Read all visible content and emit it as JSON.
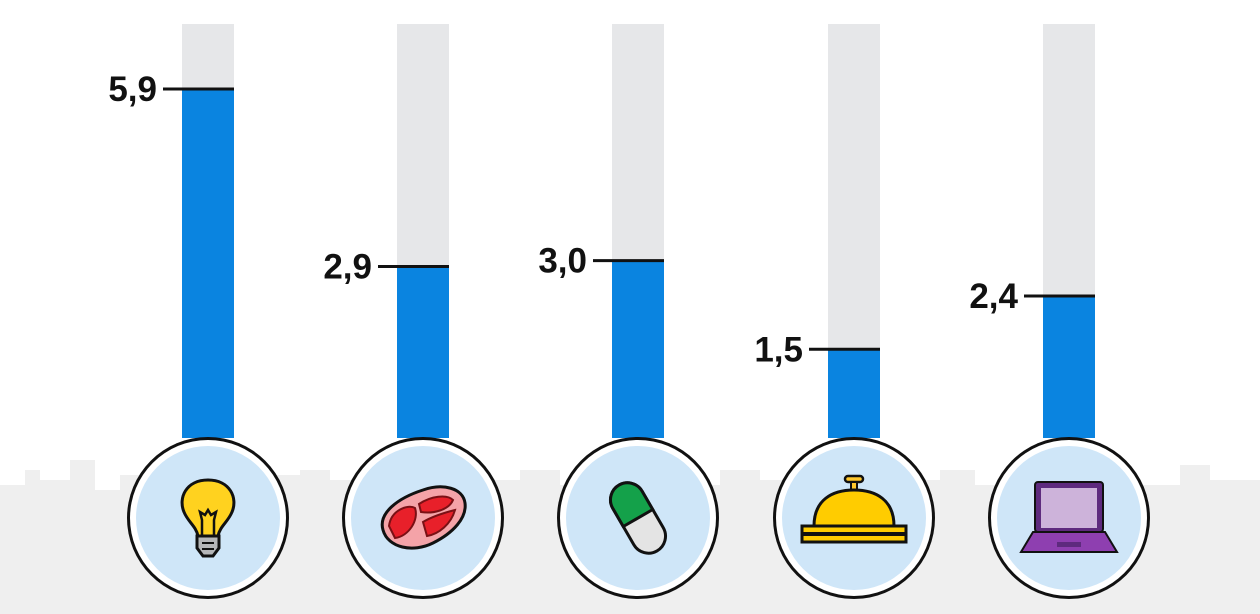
{
  "chart_data": {
    "type": "bar",
    "orientation": "vertical",
    "categories": [
      "lightbulb",
      "meat",
      "pill",
      "service-bell",
      "laptop"
    ],
    "values": [
      5.9,
      2.9,
      3.0,
      1.5,
      2.4
    ],
    "data_labels": [
      "5,9",
      "2,9",
      "3,0",
      "1,5",
      "2,4"
    ],
    "ylim": [
      0,
      7
    ],
    "grid": false,
    "legend": "none",
    "colors": {
      "bar": "#0a84e0",
      "track": "#e6e7e9",
      "icon_bg": "#cfe6f8",
      "marker": "#111111",
      "skyline": "#efefef"
    }
  }
}
